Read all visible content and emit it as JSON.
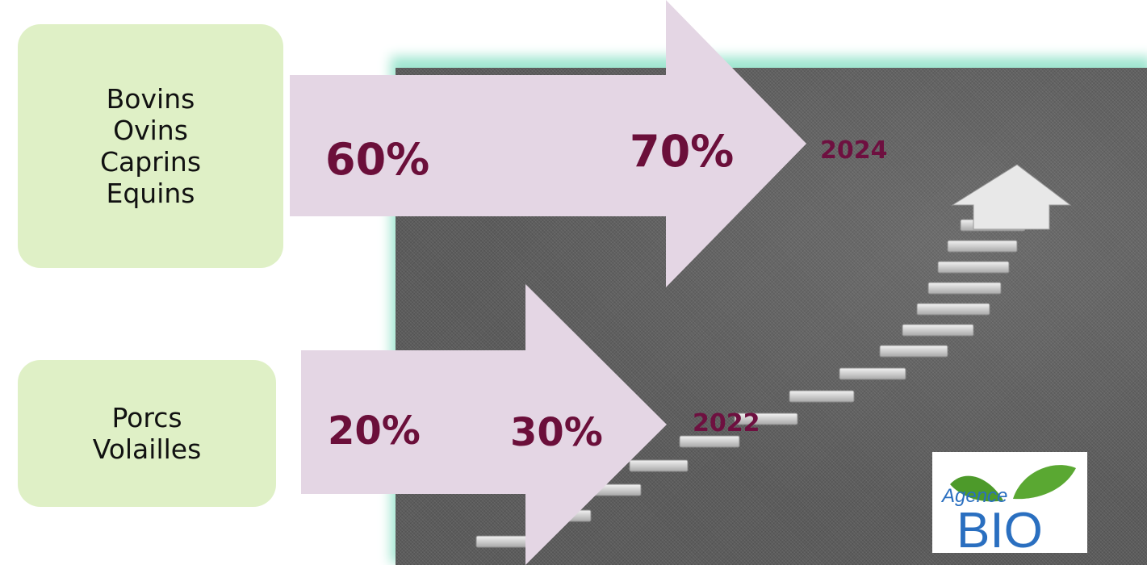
{
  "groups": [
    {
      "lines": [
        "Bovins",
        "Ovins",
        "Caprins",
        "Equins"
      ],
      "from": "60%",
      "to": "70%",
      "year": "2024"
    },
    {
      "lines": [
        "Porcs",
        "Volailles"
      ],
      "from": "20%",
      "to": "30%",
      "year": "2022"
    }
  ],
  "logo": {
    "line1": "Agence",
    "line2": "BIO"
  },
  "colors": {
    "box_fill": "#dff0c6",
    "arrow_fill": "#e4d6e4",
    "percent_text": "#6b0f3a",
    "photo_glow": "#9fe6d0",
    "logo_leaf": "#4d9a2a",
    "logo_text": "#2a6fc0"
  }
}
